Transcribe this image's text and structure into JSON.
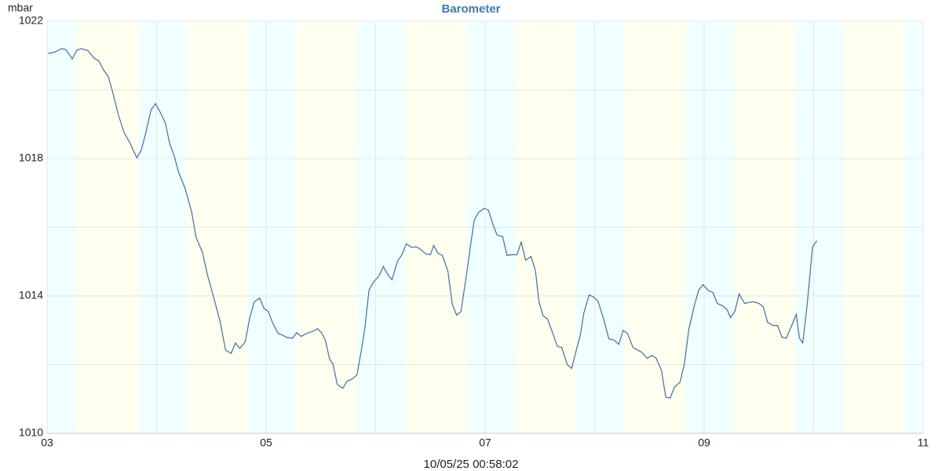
{
  "chart_data": {
    "type": "line",
    "title": "Barometer",
    "y_label": "mbar",
    "footer": "10/05/25 00:58:02",
    "series": [
      {
        "color": "#3e6fa8",
        "x": [
          3.01,
          3.07,
          3.13,
          3.17,
          3.23,
          3.27,
          3.31,
          3.37,
          3.43,
          3.47,
          3.52,
          3.56,
          3.6,
          3.65,
          3.7,
          3.76,
          3.82,
          3.86,
          3.9,
          3.95,
          3.99,
          4.03,
          4.08,
          4.12,
          4.16,
          4.2,
          4.26,
          4.32,
          4.36,
          4.42,
          4.46,
          4.52,
          4.58,
          4.63,
          4.68,
          4.72,
          4.76,
          4.81,
          4.85,
          4.89,
          4.94,
          4.98,
          5.02,
          5.06,
          5.11,
          5.15,
          5.19,
          5.24,
          5.28,
          5.32,
          5.37,
          5.42,
          5.47,
          5.51,
          5.54,
          5.58,
          5.61,
          5.65,
          5.7,
          5.74,
          5.78,
          5.83,
          5.87,
          5.9,
          5.94,
          5.98,
          6.03,
          6.07,
          6.11,
          6.15,
          6.2,
          6.24,
          6.28,
          6.33,
          6.37,
          6.41,
          6.46,
          6.5,
          6.53,
          6.57,
          6.61,
          6.66,
          6.7,
          6.74,
          6.78,
          6.83,
          6.87,
          6.9,
          6.94,
          6.99,
          7.03,
          7.07,
          7.11,
          7.16,
          7.2,
          7.24,
          7.29,
          7.33,
          7.37,
          7.42,
          7.46,
          7.49,
          7.53,
          7.57,
          7.62,
          7.66,
          7.7,
          7.75,
          7.79,
          7.83,
          7.87,
          7.9,
          7.95,
          7.99,
          8.03,
          8.08,
          8.13,
          8.18,
          8.22,
          8.26,
          8.3,
          8.35,
          8.39,
          8.43,
          8.48,
          8.52,
          8.56,
          8.61,
          8.65,
          8.69,
          8.73,
          8.78,
          8.82,
          8.86,
          8.91,
          8.95,
          8.99,
          9.04,
          9.08,
          9.12,
          9.17,
          9.21,
          9.24,
          9.28,
          9.32,
          9.37,
          9.41,
          9.45,
          9.5,
          9.54,
          9.58,
          9.63,
          9.67,
          9.71,
          9.75,
          9.8,
          9.84,
          9.87,
          9.9,
          9.94,
          9.99,
          10.03
        ],
        "values": [
          1021.06,
          1021.1,
          1021.2,
          1021.18,
          1020.9,
          1021.15,
          1021.2,
          1021.15,
          1020.92,
          1020.85,
          1020.56,
          1020.38,
          1019.92,
          1019.28,
          1018.78,
          1018.43,
          1018.02,
          1018.25,
          1018.73,
          1019.42,
          1019.6,
          1019.37,
          1019.03,
          1018.43,
          1018.09,
          1017.61,
          1017.13,
          1016.45,
          1015.71,
          1015.26,
          1014.66,
          1013.98,
          1013.25,
          1012.42,
          1012.33,
          1012.63,
          1012.47,
          1012.67,
          1013.36,
          1013.82,
          1013.94,
          1013.64,
          1013.55,
          1013.21,
          1012.91,
          1012.86,
          1012.79,
          1012.77,
          1012.93,
          1012.82,
          1012.91,
          1012.96,
          1013.05,
          1012.91,
          1012.73,
          1012.16,
          1012.02,
          1011.42,
          1011.31,
          1011.52,
          1011.57,
          1011.7,
          1012.43,
          1013.03,
          1014.17,
          1014.4,
          1014.58,
          1014.86,
          1014.63,
          1014.47,
          1015.02,
          1015.2,
          1015.52,
          1015.41,
          1015.43,
          1015.36,
          1015.22,
          1015.2,
          1015.47,
          1015.24,
          1015.18,
          1014.72,
          1013.76,
          1013.44,
          1013.55,
          1014.63,
          1015.54,
          1016.21,
          1016.43,
          1016.55,
          1016.5,
          1016.09,
          1015.77,
          1015.73,
          1015.18,
          1015.2,
          1015.2,
          1015.57,
          1015.04,
          1015.15,
          1014.72,
          1013.85,
          1013.42,
          1013.33,
          1012.89,
          1012.53,
          1012.5,
          1012.0,
          1011.89,
          1012.39,
          1012.87,
          1013.49,
          1014.03,
          1013.97,
          1013.85,
          1013.35,
          1012.75,
          1012.71,
          1012.59,
          1013.0,
          1012.91,
          1012.5,
          1012.43,
          1012.36,
          1012.18,
          1012.27,
          1012.2,
          1011.84,
          1011.05,
          1011.03,
          1011.35,
          1011.49,
          1012.03,
          1013.03,
          1013.71,
          1014.17,
          1014.33,
          1014.15,
          1014.1,
          1013.78,
          1013.71,
          1013.6,
          1013.37,
          1013.55,
          1014.06,
          1013.78,
          1013.81,
          1013.83,
          1013.78,
          1013.69,
          1013.23,
          1013.14,
          1013.14,
          1012.8,
          1012.77,
          1013.14,
          1013.46,
          1012.77,
          1012.63,
          1013.71,
          1015.43,
          1015.61
        ]
      }
    ],
    "xlim": [
      3,
      11
    ],
    "xticks": [
      {
        "value": 3,
        "label": "03"
      },
      {
        "value": 5,
        "label": "05"
      },
      {
        "value": 7,
        "label": "07"
      },
      {
        "value": 9,
        "label": "09"
      },
      {
        "value": 11,
        "label": "11"
      }
    ],
    "xminor": [
      4,
      6,
      8,
      10
    ],
    "ylim": [
      1010,
      1022
    ],
    "yticks": [
      1010,
      1014,
      1018,
      1022
    ],
    "yminor": [
      1012,
      1016,
      1020
    ],
    "grid": true,
    "day_color": "#fffff0",
    "night_color": "#f0ffff",
    "night_bands": [
      [
        3,
        3.27
      ],
      [
        3.84,
        4.27
      ],
      [
        4.83,
        5.27
      ],
      [
        5.83,
        6.27
      ],
      [
        6.83,
        7.27
      ],
      [
        7.83,
        8.27
      ],
      [
        8.83,
        9.27
      ],
      [
        9.83,
        10.27
      ],
      [
        10.83,
        11
      ]
    ]
  }
}
